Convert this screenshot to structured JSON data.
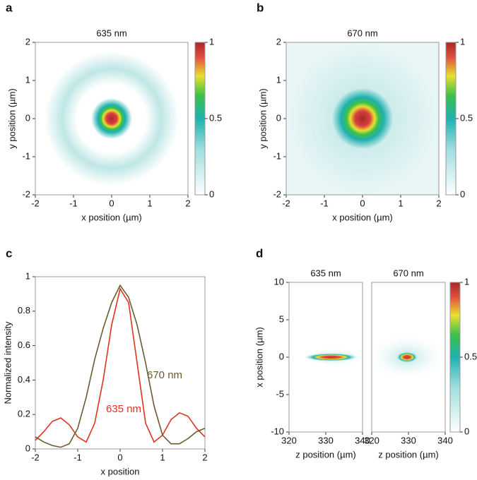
{
  "chart_data": [
    {
      "type": "heatmap",
      "panel": "a",
      "title": "635 nm",
      "xlabel": "x position (µm)",
      "ylabel": "y position (µm)",
      "xlim": [
        -2,
        2
      ],
      "ylim": [
        -2,
        2
      ],
      "xticks": [
        -2,
        -1,
        0,
        1,
        2
      ],
      "yticks": [
        -2,
        -1,
        0,
        1,
        2
      ],
      "colorbar": {
        "lim": [
          0,
          1
        ],
        "ticks": [
          0,
          0.5,
          1
        ]
      }
    },
    {
      "type": "heatmap",
      "panel": "b",
      "title": "670 nm",
      "xlabel": "x position (µm)",
      "ylabel": "y position (µm)",
      "xlim": [
        -2,
        2
      ],
      "ylim": [
        -2,
        2
      ],
      "xticks": [
        -2,
        -1,
        0,
        1,
        2
      ],
      "yticks": [
        -2,
        -1,
        0,
        1,
        2
      ],
      "colorbar": {
        "lim": [
          0,
          1
        ],
        "ticks": [
          0,
          0.5,
          1
        ]
      }
    },
    {
      "type": "line",
      "panel": "c",
      "xlabel": "x position",
      "ylabel": "Normalized intensity",
      "xlim": [
        -2,
        2
      ],
      "ylim": [
        0,
        1
      ],
      "xticks": [
        -2,
        -1,
        0,
        1,
        2
      ],
      "yticks": [
        0,
        0.2,
        0.4,
        0.6,
        0.8,
        1
      ],
      "x": [
        -2,
        -1.8,
        -1.6,
        -1.4,
        -1.2,
        -1,
        -0.8,
        -0.6,
        -0.4,
        -0.2,
        0,
        0.2,
        0.4,
        0.6,
        0.8,
        1,
        1.2,
        1.4,
        1.6,
        1.8,
        2
      ],
      "series": [
        {
          "name": "635 nm",
          "color": "#e0321e",
          "values": [
            0.05,
            0.1,
            0.16,
            0.18,
            0.14,
            0.07,
            0.04,
            0.15,
            0.4,
            0.72,
            0.93,
            0.85,
            0.5,
            0.15,
            0.04,
            0.08,
            0.17,
            0.21,
            0.19,
            0.12,
            0.07
          ]
        },
        {
          "name": "670 nm",
          "color": "#6b5a2e",
          "values": [
            0.07,
            0.04,
            0.02,
            0.01,
            0.03,
            0.12,
            0.3,
            0.52,
            0.7,
            0.85,
            0.95,
            0.88,
            0.72,
            0.5,
            0.25,
            0.08,
            0.03,
            0.03,
            0.06,
            0.1,
            0.12
          ]
        }
      ]
    },
    {
      "type": "heatmap-pair",
      "panel": "d",
      "titles": [
        "635 nm",
        "670 nm"
      ],
      "xlabel": "z position (µm)",
      "ylabel": "x position (µm)",
      "xlim": [
        320,
        340
      ],
      "ylim": [
        -10,
        10
      ],
      "xticks": [
        320,
        330,
        340
      ],
      "yticks": [
        -10,
        -5,
        0,
        5,
        10
      ],
      "colorbar": {
        "lim": [
          0,
          1
        ],
        "ticks": [
          0,
          0.5,
          1
        ]
      }
    }
  ]
}
